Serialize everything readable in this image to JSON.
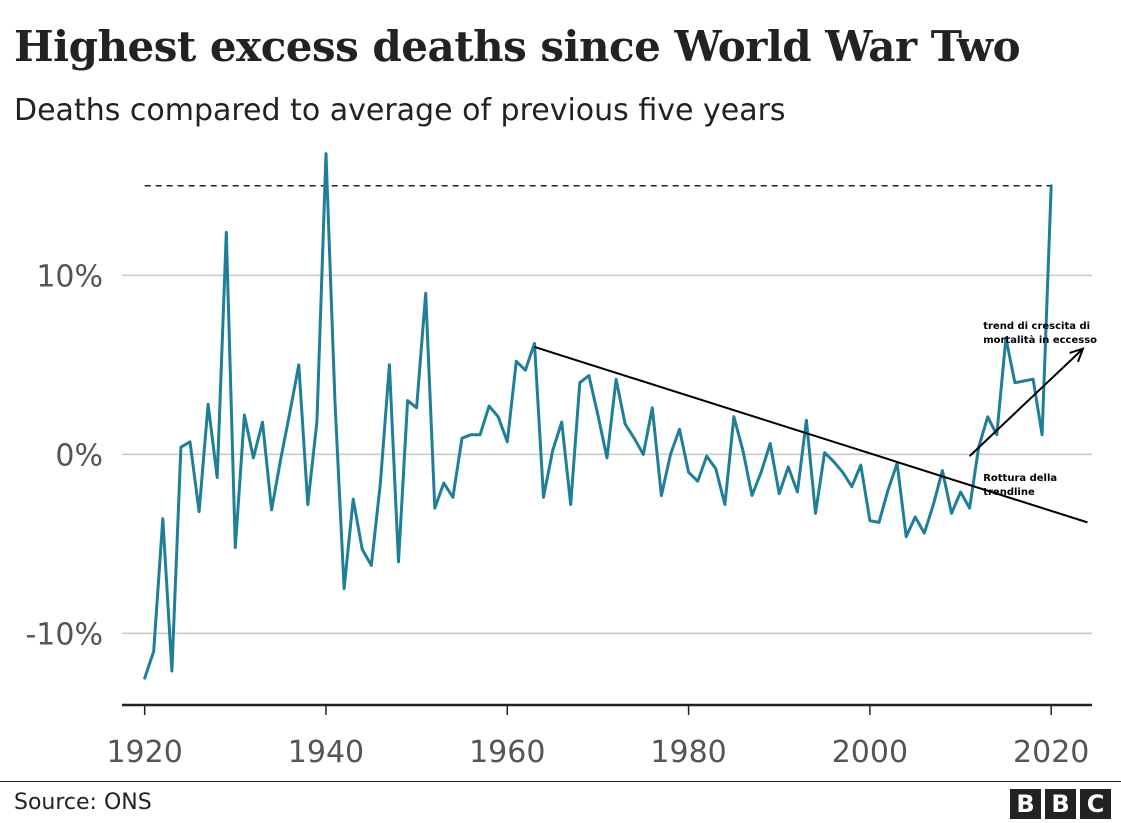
{
  "title": "Highest excess deaths since World War Two",
  "subtitle": "Deaths compared to average of previous five years",
  "source": "Source: ONS",
  "logo": {
    "letters": [
      "B",
      "B",
      "C"
    ],
    "name": "bbc-logo"
  },
  "colors": {
    "series": "#1f7f99",
    "grid": "#c8c8c8",
    "axis": "#222222",
    "annotation": "#000000"
  },
  "chart_data": {
    "type": "line",
    "title": "Highest excess deaths since World War Two",
    "xlabel": "",
    "ylabel": "",
    "xlim": [
      1917.5,
      2024.5
    ],
    "ylim": [
      -14,
      17
    ],
    "grid": true,
    "x_ticks": [
      1920,
      1940,
      1960,
      1980,
      2000,
      2020
    ],
    "x_tick_labels": [
      "1920",
      "1940",
      "1960",
      "1980",
      "2000",
      "2020"
    ],
    "y_ticks": [
      10,
      0,
      -10
    ],
    "y_tick_labels": [
      "10%",
      "0%",
      "-10%"
    ],
    "series": [
      {
        "x": [
          1920,
          1921,
          1922,
          1923,
          1924,
          1925,
          1926,
          1927,
          1928,
          1929,
          1930,
          1931,
          1932,
          1933,
          1934,
          1935,
          1936,
          1937,
          1938,
          1939,
          1940,
          1941,
          1942,
          1943,
          1944,
          1945,
          1946,
          1947,
          1948,
          1949,
          1950,
          1951,
          1952,
          1953,
          1954,
          1955,
          1956,
          1957,
          1958,
          1959,
          1960,
          1961,
          1962,
          1963,
          1964,
          1965,
          1966,
          1967,
          1968,
          1969,
          1970,
          1971,
          1972,
          1973,
          1974,
          1975,
          1976,
          1977,
          1978,
          1979,
          1980,
          1981,
          1982,
          1983,
          1984,
          1985,
          1986,
          1987,
          1988,
          1989,
          1990,
          1991,
          1992,
          1993,
          1994,
          1995,
          1996,
          1997,
          1998,
          1999,
          2000,
          2001,
          2002,
          2003,
          2004,
          2005,
          2006,
          2007,
          2008,
          2009,
          2010,
          2011,
          2012,
          2013,
          2014,
          2015,
          2016,
          2017,
          2018,
          2019,
          2020
        ],
        "values": [
          -12.5,
          -11.0,
          -3.6,
          -12.1,
          0.4,
          0.7,
          -3.2,
          2.8,
          -1.3,
          12.4,
          -5.2,
          2.2,
          -0.2,
          1.8,
          -3.1,
          -0.3,
          2.3,
          5.0,
          -2.8,
          1.8,
          16.8,
          2.9,
          -7.5,
          -2.5,
          -5.3,
          -6.2,
          -1.6,
          5.0,
          -6.0,
          3.0,
          2.6,
          9.0,
          -3.0,
          -1.6,
          -2.4,
          0.9,
          1.1,
          1.1,
          2.7,
          2.1,
          0.7,
          5.2,
          4.7,
          6.2,
          -2.4,
          0.2,
          1.8,
          -2.8,
          4.0,
          4.4,
          2.2,
          -0.2,
          4.2,
          1.7,
          0.9,
          0.0,
          2.6,
          -2.3,
          0.0,
          1.4,
          -1.0,
          -1.5,
          -0.1,
          -0.8,
          -2.8,
          2.1,
          0.2,
          -2.3,
          -1.0,
          0.6,
          -2.2,
          -0.7,
          -2.1,
          1.9,
          -3.3,
          0.1,
          -0.4,
          -1.0,
          -1.8,
          -0.6,
          -3.7,
          -3.8,
          -2.0,
          -0.5,
          -4.6,
          -3.5,
          -4.4,
          -2.8,
          -0.9,
          -3.3,
          -2.1,
          -3.0,
          0.4,
          2.1,
          1.1,
          6.5,
          4.0,
          4.1,
          4.2,
          1.1,
          15.0
        ]
      }
    ],
    "reference_line": {
      "y": 15.0,
      "style": "dashed"
    },
    "trendline": {
      "from": [
        1963,
        6.0
      ],
      "to": [
        2024,
        -3.8
      ]
    },
    "arrow": {
      "from": [
        2011,
        -0.1
      ],
      "to": [
        2023.5,
        5.9
      ]
    },
    "annotations": [
      {
        "lines": [
          "trend di crescita di",
          "mortalità in eccesso"
        ],
        "x": 2012.5,
        "y": 7.0
      },
      {
        "lines": [
          "Rottura della",
          "trendline"
        ],
        "x": 2012.5,
        "y": -1.5
      }
    ]
  }
}
